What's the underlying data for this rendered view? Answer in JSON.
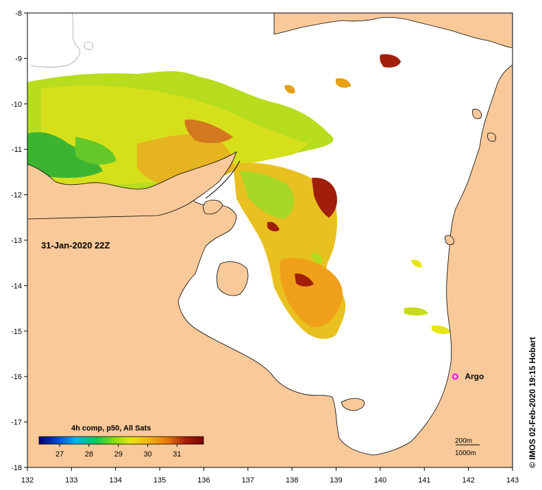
{
  "map": {
    "date_label": "31-Jan-2020 22Z",
    "credit": "© IMOS 02-Feb-2020 19:15 Hobart",
    "lon_ticks": [
      "132",
      "133",
      "134",
      "135",
      "136",
      "137",
      "138",
      "139",
      "140",
      "141",
      "142",
      "143"
    ],
    "lat_ticks": [
      "-8",
      "-9",
      "-10",
      "-11",
      "-12",
      "-13",
      "-14",
      "-15",
      "-16",
      "-17",
      "-18"
    ],
    "lon_range": [
      132,
      143
    ],
    "lat_range": [
      -18,
      -8
    ],
    "colors": {
      "land": "#f9c99a",
      "ocean": "#ffffff",
      "coast": "#000000",
      "argo": "#ff00ff"
    }
  },
  "legend": {
    "title": "4h comp, p50, All Sats",
    "ticks": [
      "27",
      "28",
      "29",
      "30",
      "31"
    ],
    "tick_values": [
      27,
      28,
      29,
      30,
      31
    ],
    "range": [
      26.3,
      31.9
    ],
    "colors": [
      "#00006e",
      "#0048c8",
      "#00b4f0",
      "#00c864",
      "#78dc14",
      "#e6e614",
      "#f5b414",
      "#e6780a",
      "#aa1e0a",
      "#780000"
    ]
  },
  "argo": {
    "label": "Argo",
    "lon": 141.7,
    "lat": -16.0
  },
  "scale": {
    "depth_label": "200m",
    "depth2_label": "1000m"
  }
}
